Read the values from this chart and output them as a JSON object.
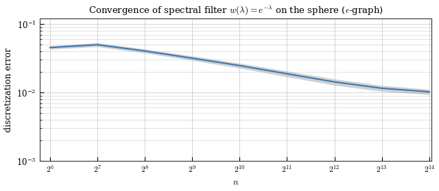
{
  "title": "Convergence of spectral filter $w(\\lambda) = e^{-\\lambda}$ on the sphere ($\\epsilon$-graph)",
  "xlabel": "$n$",
  "ylabel": "discretization error",
  "x_exponents": [
    6,
    7,
    8,
    9,
    10,
    11,
    12,
    13,
    14
  ],
  "y_mean": [
    0.0455,
    0.05,
    0.0405,
    0.0318,
    0.0248,
    0.0188,
    0.0143,
    0.01155,
    0.01025
  ],
  "y_lower": [
    0.043,
    0.0468,
    0.0378,
    0.0295,
    0.0228,
    0.017,
    0.0128,
    0.0104,
    0.00935
  ],
  "y_upper": [
    0.0482,
    0.0535,
    0.0433,
    0.0342,
    0.0268,
    0.0206,
    0.0158,
    0.0127,
    0.01115
  ],
  "line_color": "#3a78b5",
  "band_color": "#aaaaaa",
  "band_alpha": 0.55,
  "ylim_lower": 0.001,
  "ylim_upper": 0.12,
  "xlim_lower": 55,
  "xlim_upper": 17000,
  "background_color": "#ffffff",
  "grid_color": "#cccccc",
  "line_width": 1.5,
  "title_fontsize": 9.5,
  "label_fontsize": 9,
  "tick_fontsize": 8.5
}
